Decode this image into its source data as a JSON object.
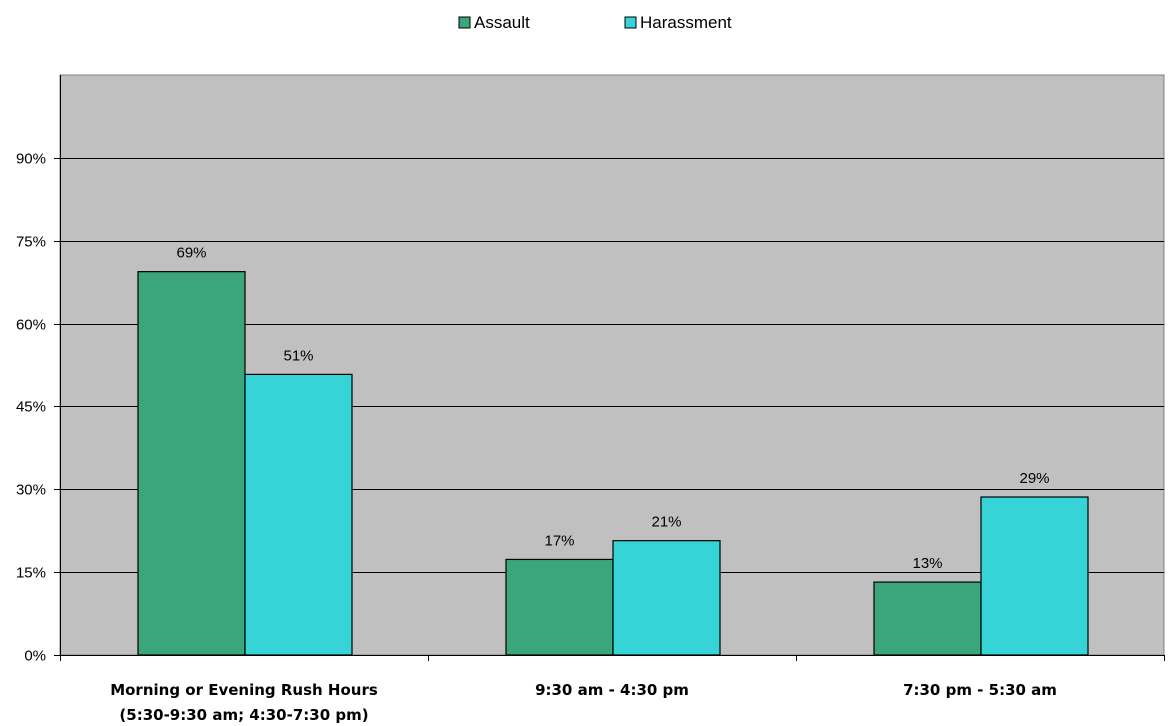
{
  "chart_data": {
    "type": "bar",
    "categories": [
      [
        "Morning or Evening Rush Hours",
        "(5:30-9:30 am; 4:30-7:30 pm)"
      ],
      [
        "9:30 am - 4:30 pm"
      ],
      [
        "7:30 pm - 5:30 am"
      ]
    ],
    "series": [
      {
        "name": "Assault",
        "values": [
          69.4,
          17.3,
          13.2
        ],
        "labels": [
          "69%",
          "17%",
          "13%"
        ],
        "color": "#3aa679"
      },
      {
        "name": "Harassment",
        "values": [
          50.8,
          20.7,
          28.6
        ],
        "labels": [
          "51%",
          "21%",
          "29%"
        ],
        "color": "#36d4d6"
      }
    ],
    "title": "",
    "xlabel": "",
    "ylabel": "",
    "ylim": [
      0,
      105
    ],
    "yticks": [
      0,
      15,
      30,
      45,
      60,
      75,
      90
    ],
    "ytick_labels": [
      "0%",
      "15%",
      "30%",
      "45%",
      "60%",
      "75%",
      "90%"
    ],
    "grid": true,
    "legend_position": "top-center",
    "plot_background": "#c0c0c0"
  }
}
